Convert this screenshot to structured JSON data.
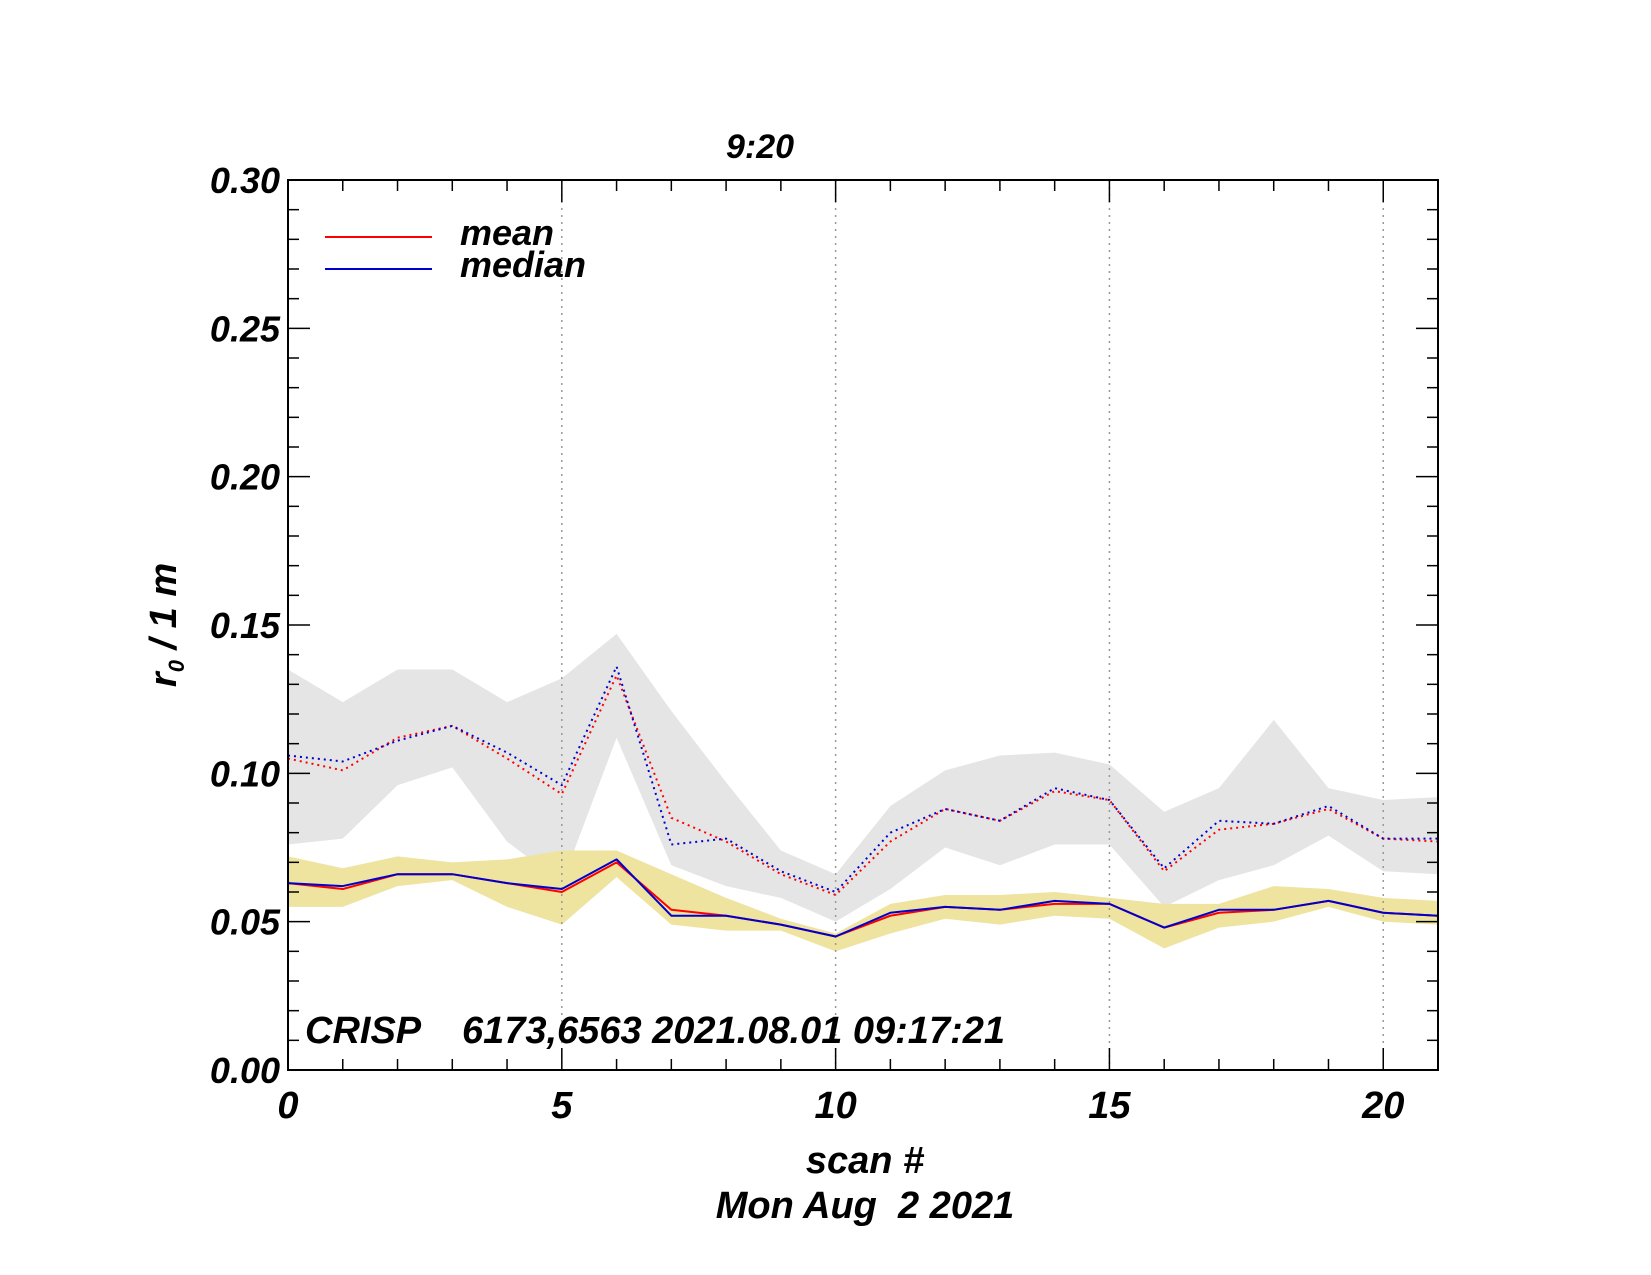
{
  "chart_data": {
    "type": "line",
    "title": "9:20",
    "xlabel": "scan #",
    "ylabel_main": "r",
    "ylabel_sub": "0",
    "ylabel_rest": " / 1 m",
    "date_label": "Mon Aug  2 2021",
    "annotation": "CRISP    6173,6563 2021.08.01 09:17:21",
    "xlim": [
      0,
      21
    ],
    "ylim": [
      0,
      0.3
    ],
    "x_ticks": [
      0,
      5,
      10,
      15,
      20
    ],
    "x_tick_labels": [
      "0",
      "5",
      "10",
      "15",
      "20"
    ],
    "y_ticks": [
      0,
      0.05,
      0.1,
      0.15,
      0.2,
      0.25,
      0.3
    ],
    "y_tick_labels": [
      "0.00",
      "0.05",
      "0.10",
      "0.15",
      "0.20",
      "0.25",
      "0.30"
    ],
    "vertical_gridlines": [
      5,
      10,
      15,
      20
    ],
    "legend": [
      {
        "label": "mean",
        "color": "#ff0000"
      },
      {
        "label": "median",
        "color": "#0000cc"
      }
    ],
    "x": [
      0,
      1,
      2,
      3,
      4,
      5,
      6,
      7,
      8,
      9,
      10,
      11,
      12,
      13,
      14,
      15,
      16,
      17,
      18,
      19,
      20,
      21
    ],
    "series": [
      {
        "name": "mean (solid)",
        "color": "#ff0000",
        "style": "solid",
        "values": [
          0.063,
          0.061,
          0.066,
          0.066,
          0.063,
          0.06,
          0.07,
          0.054,
          0.052,
          0.049,
          0.045,
          0.052,
          0.055,
          0.054,
          0.056,
          0.056,
          0.048,
          0.053,
          0.054,
          0.057,
          0.053,
          0.052
        ]
      },
      {
        "name": "median (solid)",
        "color": "#0000cc",
        "style": "solid",
        "values": [
          0.063,
          0.062,
          0.066,
          0.066,
          0.063,
          0.061,
          0.071,
          0.052,
          0.052,
          0.049,
          0.045,
          0.053,
          0.055,
          0.054,
          0.057,
          0.056,
          0.048,
          0.054,
          0.054,
          0.057,
          0.053,
          0.052
        ]
      },
      {
        "name": "mean (dotted)",
        "color": "#ff0000",
        "style": "dotted",
        "values": [
          0.105,
          0.101,
          0.112,
          0.116,
          0.105,
          0.093,
          0.133,
          0.085,
          0.077,
          0.066,
          0.059,
          0.077,
          0.088,
          0.084,
          0.094,
          0.091,
          0.067,
          0.081,
          0.083,
          0.088,
          0.078,
          0.077
        ]
      },
      {
        "name": "median (dotted)",
        "color": "#0000cc",
        "style": "dotted",
        "values": [
          0.106,
          0.104,
          0.111,
          0.116,
          0.107,
          0.096,
          0.136,
          0.076,
          0.078,
          0.067,
          0.06,
          0.08,
          0.088,
          0.084,
          0.095,
          0.091,
          0.068,
          0.084,
          0.083,
          0.089,
          0.078,
          0.078
        ]
      }
    ],
    "bands": [
      {
        "name": "range (dotted)",
        "color": "#e5e5e5",
        "upper": [
          0.135,
          0.124,
          0.135,
          0.135,
          0.124,
          0.132,
          0.147,
          0.121,
          0.097,
          0.074,
          0.066,
          0.089,
          0.101,
          0.106,
          0.107,
          0.103,
          0.087,
          0.095,
          0.118,
          0.095,
          0.091,
          0.092
        ],
        "lower": [
          0.076,
          0.078,
          0.096,
          0.102,
          0.077,
          0.063,
          0.112,
          0.069,
          0.062,
          0.058,
          0.05,
          0.061,
          0.075,
          0.069,
          0.076,
          0.076,
          0.055,
          0.064,
          0.069,
          0.079,
          0.067,
          0.066
        ]
      },
      {
        "name": "range (solid)",
        "color": "#efe3a0",
        "upper": [
          0.072,
          0.068,
          0.072,
          0.07,
          0.071,
          0.074,
          0.074,
          0.066,
          0.058,
          0.051,
          0.046,
          0.056,
          0.059,
          0.059,
          0.06,
          0.058,
          0.056,
          0.056,
          0.062,
          0.061,
          0.058,
          0.057
        ],
        "lower": [
          0.055,
          0.055,
          0.062,
          0.064,
          0.055,
          0.049,
          0.065,
          0.049,
          0.047,
          0.047,
          0.04,
          0.046,
          0.051,
          0.049,
          0.052,
          0.051,
          0.041,
          0.048,
          0.05,
          0.055,
          0.05,
          0.049
        ]
      }
    ]
  }
}
